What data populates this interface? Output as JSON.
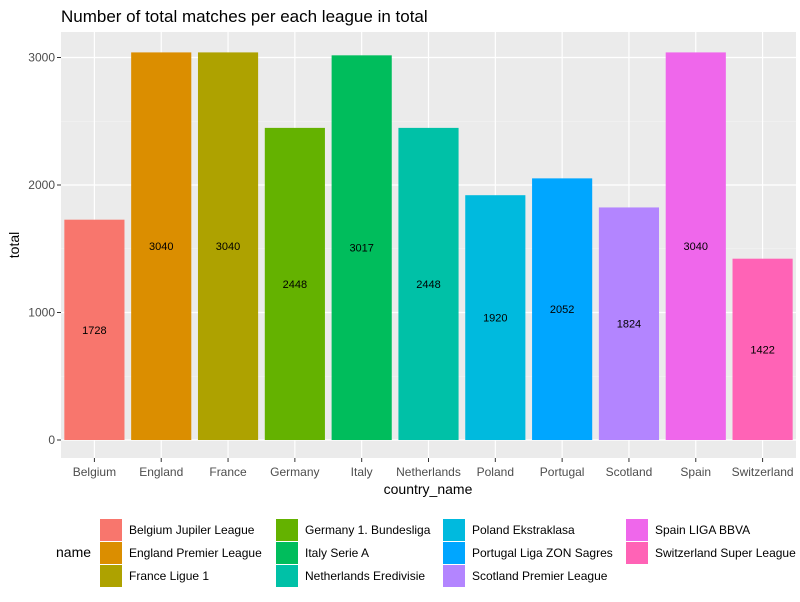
{
  "chart_data": {
    "type": "bar",
    "title": "Number of total matches per each league in total",
    "xlabel": "country_name",
    "ylabel": "total",
    "ylim": [
      0,
      3200
    ],
    "yticks": [
      0,
      1000,
      2000,
      3000
    ],
    "grid": true,
    "legend_position": "bottom",
    "legend_title": "name",
    "categories": [
      "Belgium",
      "England",
      "France",
      "Germany",
      "Italy",
      "Netherlands",
      "Poland",
      "Portugal",
      "Scotland",
      "Spain",
      "Switzerland"
    ],
    "values": [
      1728,
      3040,
      3040,
      2448,
      3017,
      2448,
      1920,
      2052,
      1824,
      3040,
      1422
    ],
    "series_names": [
      "Belgium Jupiler League",
      "England Premier League",
      "France Ligue 1",
      "Germany 1. Bundesliga",
      "Italy Serie A",
      "Netherlands Eredivisie",
      "Poland Ekstraklasa",
      "Portugal Liga ZON Sagres",
      "Scotland Premier League",
      "Spain LIGA BBVA",
      "Switzerland Super League"
    ],
    "colors": [
      "#F8766D",
      "#DB8E00",
      "#AEA200",
      "#64B200",
      "#00BD5C",
      "#00C1A7",
      "#00BADE",
      "#00A6FF",
      "#B385FF",
      "#EF67EB",
      "#FF63B6"
    ]
  }
}
